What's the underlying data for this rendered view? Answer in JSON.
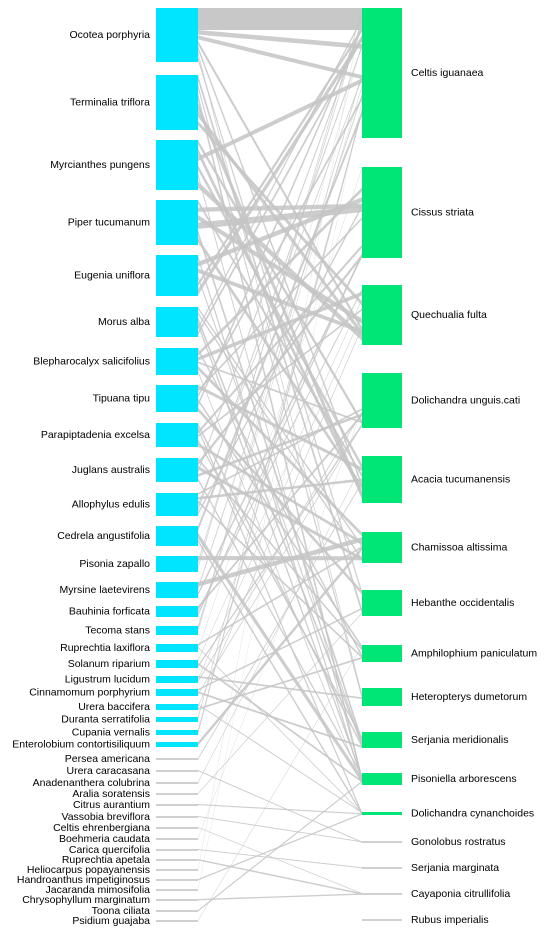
{
  "left_nodes": [
    "Ocotea porphyria",
    "Terminalia triflora",
    "Myrcianthes pungens",
    "Piper tucumanum",
    "Eugenia uniflora",
    "Morus alba",
    "Blepharocalyx salicifolius",
    "Tipuana tipu",
    "Parapiptadenia excelsa",
    "Juglans australis",
    "Allophylus edulis",
    "Cedrela angustifolia",
    "Pisonia zapallo",
    "Myrsine laetevirens",
    "Bauhinia forficata",
    "Tecoma stans",
    "Ruprechtia laxiflora",
    "Solanum riparium",
    "Ligustrum lucidum",
    "Cinnamomum porphyrium",
    "Urera baccifera",
    "Duranta serratifolia",
    "Cupania vernalis",
    "Enterolobium contortisiliquum",
    "Persea americana",
    "Urera caracasana",
    "Anadenanthera colubrina",
    "Aralia soratensis",
    "Citrus aurantium",
    "Vassobia breviflora",
    "Celtis ehrenbergiana",
    "Boehmeria caudata",
    "Carica quercifolia",
    "Ruprechtia apetala",
    "Heliocarpus popayanensis",
    "Handroanthus impetiginosus",
    "Jacaranda mimosifolia",
    "Chrysophyllum marginatum",
    "Toona ciliata",
    "Psidium guajaba"
  ],
  "right_nodes": [
    "Celtis iguanaea",
    "Cissus striata",
    "Quechualia fulta",
    "Dolichandra unguis.cati",
    "Acacia tucumanensis",
    "Chamissoa altissima",
    "Hebanthe occidentalis",
    "Amphilophium paniculatum",
    "Heteropterys dumetorum",
    "Serjania meridionalis",
    "Pisoniella arborescens",
    "Dolichandra cynanchoides",
    "Gonolobus rostratus",
    "Serjania marginata",
    "Cayaponia citrullifolia",
    "Rubus imperialis"
  ]
}
